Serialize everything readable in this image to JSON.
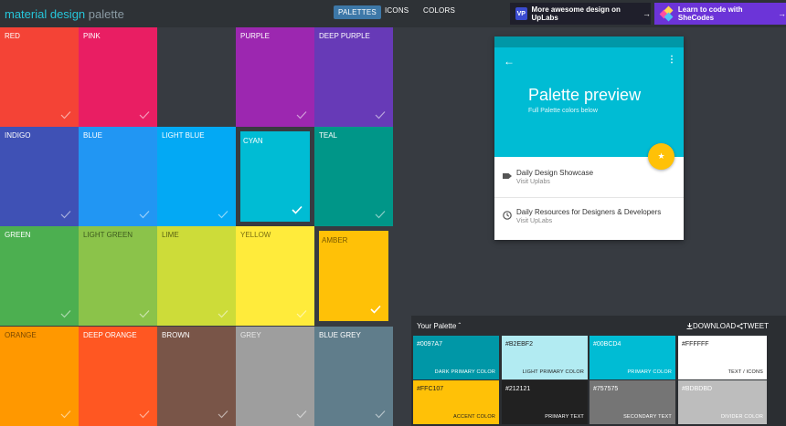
{
  "header": {
    "logo_main": "material design",
    "logo_sub": "palette",
    "nav": [
      {
        "label": "PALETTES",
        "active": true
      },
      {
        "label": "ICONS",
        "active": false
      },
      {
        "label": "COLORS",
        "active": false
      }
    ],
    "uplabs_badge": "VP",
    "uplabs_text": "More awesome design on UpLabs",
    "shecodes_text": "Learn to code with SheCodes",
    "arrow": "→"
  },
  "colors": [
    {
      "name": "RED",
      "hex": "#f44336",
      "text": "#ffffff",
      "selected": false
    },
    {
      "name": "PINK",
      "hex": "#e91e63",
      "text": "#ffffff",
      "selected": false
    },
    {
      "name": "",
      "hex": "#373b41",
      "text": "#ffffff",
      "selected": false,
      "empty": true
    },
    {
      "name": "PURPLE",
      "hex": "#9c27b0",
      "text": "#ffffff",
      "selected": false
    },
    {
      "name": "DEEP PURPLE",
      "hex": "#673ab7",
      "text": "#ffffff",
      "selected": false
    },
    {
      "name": "INDIGO",
      "hex": "#3f51b5",
      "text": "#ffffff",
      "selected": false
    },
    {
      "name": "BLUE",
      "hex": "#2196f3",
      "text": "#ffffff",
      "selected": false
    },
    {
      "name": "LIGHT BLUE",
      "hex": "#03a9f4",
      "text": "#ffffff",
      "selected": false
    },
    {
      "name": "CYAN",
      "hex": "#00bcd4",
      "text": "#ffffff",
      "selected": true
    },
    {
      "name": "TEAL",
      "hex": "#009688",
      "text": "#ffffff",
      "selected": false
    },
    {
      "name": "GREEN",
      "hex": "#4caf50",
      "text": "#ffffff",
      "selected": false
    },
    {
      "name": "LIGHT GREEN",
      "hex": "#8bc34a",
      "text": "#3d5a1e",
      "selected": false
    },
    {
      "name": "LIME",
      "hex": "#cddc39",
      "text": "#5a6212",
      "selected": false
    },
    {
      "name": "YELLOW",
      "hex": "#ffeb3b",
      "text": "#7a6f10",
      "selected": false
    },
    {
      "name": "AMBER",
      "hex": "#ffc107",
      "text": "#7a5a00",
      "selected": true
    },
    {
      "name": "ORANGE",
      "hex": "#ff9800",
      "text": "#7a4800",
      "selected": false
    },
    {
      "name": "DEEP ORANGE",
      "hex": "#ff5722",
      "text": "#ffffff",
      "selected": false
    },
    {
      "name": "BROWN",
      "hex": "#795548",
      "text": "#ffffff",
      "selected": false
    },
    {
      "name": "GREY",
      "hex": "#9e9e9e",
      "text": "#e8e8e8",
      "selected": false
    },
    {
      "name": "BLUE GREY",
      "hex": "#607d8b",
      "text": "#ffffff",
      "selected": false
    }
  ],
  "preview": {
    "title": "Palette preview",
    "subtitle": "Full Palette colors below",
    "items": [
      {
        "title": "Daily Design Showcase",
        "sub": "Visit Uplabs",
        "icon": "label-icon"
      },
      {
        "title": "Daily Resources for Designers & Developers",
        "sub": "Visit UpLabs",
        "icon": "clock-icon"
      }
    ]
  },
  "your_palette": {
    "title": "Your Palette",
    "download": "DOWNLOAD",
    "tweet": "TWEET",
    "swatches": [
      {
        "hex": "#0097A7",
        "role": "DARK PRIMARY COLOR",
        "bg": "#0097a7",
        "fg": "#ffffff"
      },
      {
        "hex": "#B2EBF2",
        "role": "LIGHT PRIMARY COLOR",
        "bg": "#b2ebf2",
        "fg": "#212121"
      },
      {
        "hex": "#00BCD4",
        "role": "PRIMARY COLOR",
        "bg": "#00bcd4",
        "fg": "#ffffff"
      },
      {
        "hex": "#FFFFFF",
        "role": "TEXT / ICONS",
        "bg": "#ffffff",
        "fg": "#212121"
      },
      {
        "hex": "#FFC107",
        "role": "ACCENT COLOR",
        "bg": "#ffc107",
        "fg": "#212121"
      },
      {
        "hex": "#212121",
        "role": "PRIMARY TEXT",
        "bg": "#212121",
        "fg": "#ffffff"
      },
      {
        "hex": "#757575",
        "role": "SECONDARY TEXT",
        "bg": "#757575",
        "fg": "#ffffff"
      },
      {
        "hex": "#BDBDBD",
        "role": "DIVIDER COLOR",
        "bg": "#bdbdbd",
        "fg": "#ffffff"
      }
    ]
  }
}
